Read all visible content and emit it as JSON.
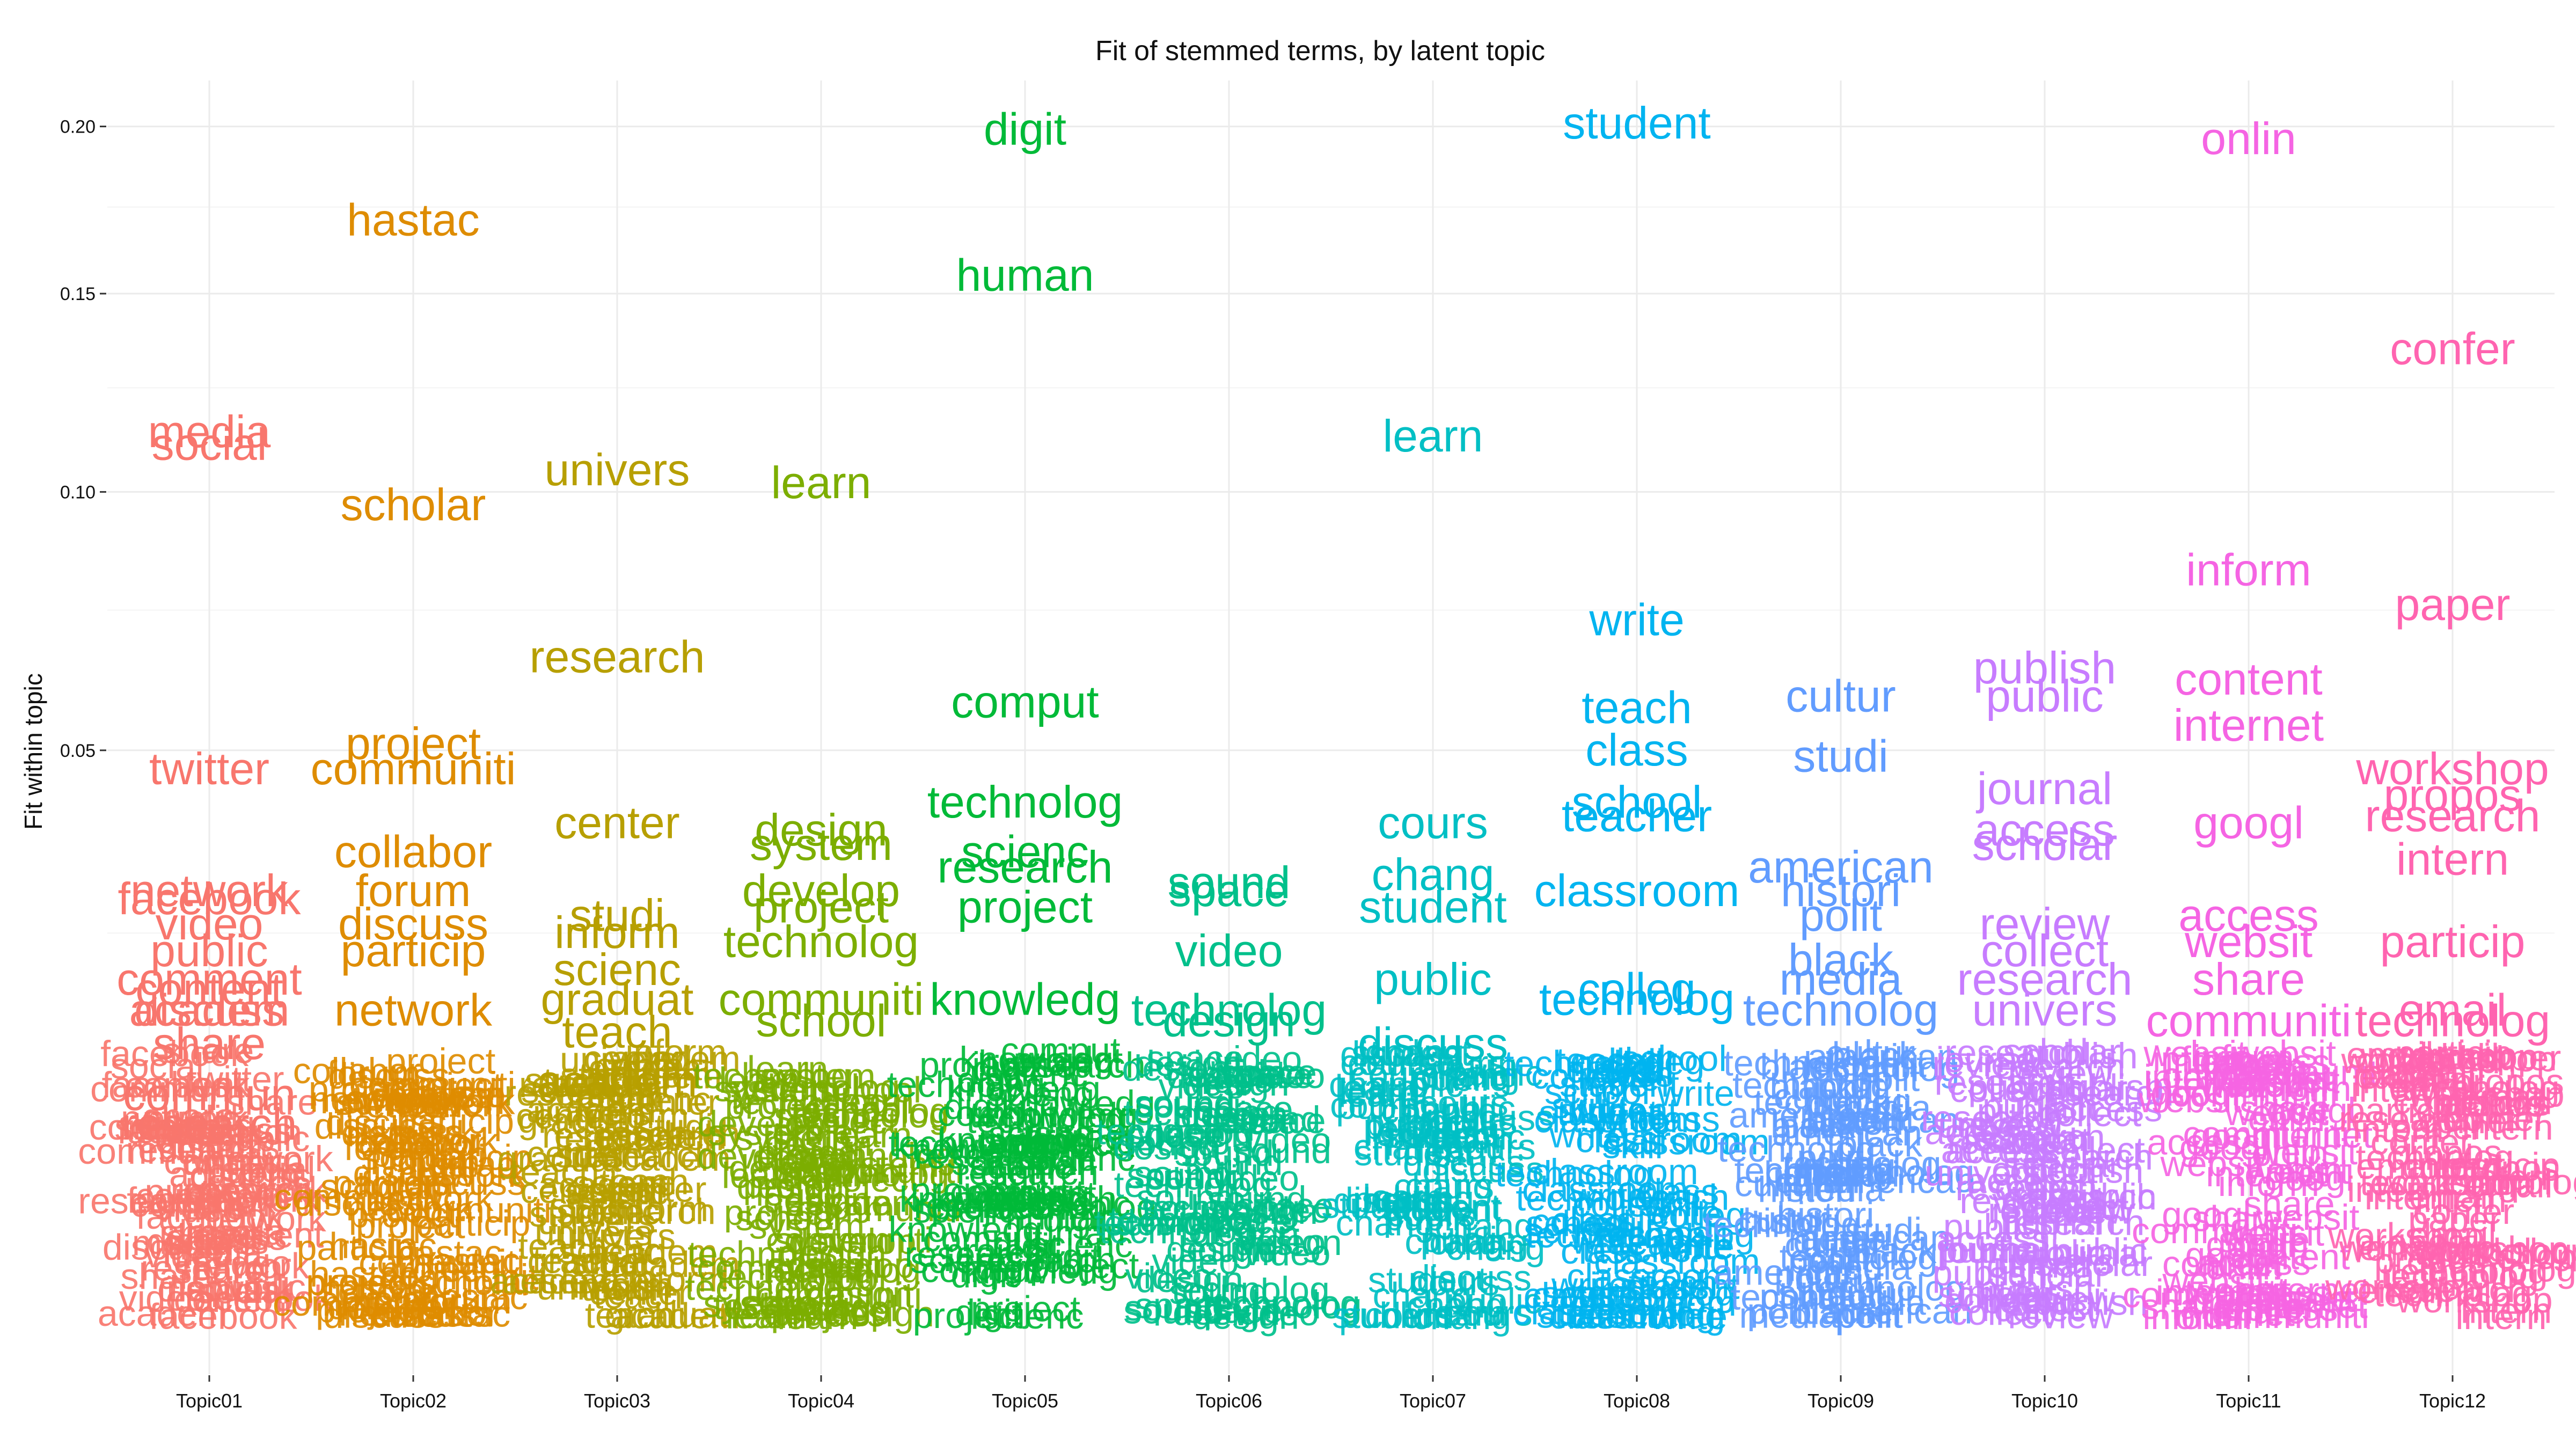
{
  "chart_data": {
    "type": "scatter",
    "title": "Fit of stemmed terms, by latent topic",
    "xlabel": "",
    "ylabel": "Fit within topic",
    "y_scale": "sqrt",
    "ylim": [
      0,
      0.215
    ],
    "y_ticks": [
      0.05,
      0.1,
      0.15,
      0.2
    ],
    "y_tick_labels": [
      "0.05",
      "0.10",
      "0.15",
      "0.20"
    ],
    "grid": true,
    "legend": "none",
    "categories": [
      "Topic01",
      "Topic02",
      "Topic03",
      "Topic04",
      "Topic05",
      "Topic06",
      "Topic07",
      "Topic08",
      "Topic09",
      "Topic10",
      "Topic11",
      "Topic12"
    ],
    "colors": [
      "#F8766D",
      "#DE8C00",
      "#B79F00",
      "#7CAE00",
      "#00BA38",
      "#00C08B",
      "#00BFC4",
      "#00B4F0",
      "#619CFF",
      "#C77CFF",
      "#F564E3",
      "#FF64B0"
    ],
    "series": [
      {
        "name": "Topic01",
        "points": [
          {
            "term": "media",
            "y": 0.114
          },
          {
            "term": "social",
            "y": 0.111
          },
          {
            "term": "twitter",
            "y": 0.047
          },
          {
            "term": "network",
            "y": 0.03
          },
          {
            "term": "facebook",
            "y": 0.029
          },
          {
            "term": "video",
            "y": 0.026
          },
          {
            "term": "public",
            "y": 0.023
          },
          {
            "term": "comment",
            "y": 0.02
          },
          {
            "term": "content",
            "y": 0.019
          },
          {
            "term": "discuss",
            "y": 0.017
          },
          {
            "term": "academ",
            "y": 0.017
          },
          {
            "term": "share",
            "y": 0.014
          },
          {
            "term": "commun",
            "y": 0.01
          },
          {
            "term": "research",
            "y": 0.008
          }
        ]
      },
      {
        "name": "Topic02",
        "points": [
          {
            "term": "hastac",
            "y": 0.171
          },
          {
            "term": "scholar",
            "y": 0.097
          },
          {
            "term": "project",
            "y": 0.051
          },
          {
            "term": "communiti",
            "y": 0.047
          },
          {
            "term": "collabor",
            "y": 0.035
          },
          {
            "term": "forum",
            "y": 0.03
          },
          {
            "term": "discuss",
            "y": 0.026
          },
          {
            "term": "particip",
            "y": 0.023
          },
          {
            "term": "network",
            "y": 0.017
          }
        ]
      },
      {
        "name": "Topic03",
        "points": [
          {
            "term": "univers",
            "y": 0.105
          },
          {
            "term": "research",
            "y": 0.066
          },
          {
            "term": "center",
            "y": 0.039
          },
          {
            "term": "studi",
            "y": 0.027
          },
          {
            "term": "inform",
            "y": 0.025
          },
          {
            "term": "scienc",
            "y": 0.021
          },
          {
            "term": "graduat",
            "y": 0.018
          },
          {
            "term": "teach",
            "y": 0.015
          },
          {
            "term": "academ",
            "y": 0.011
          }
        ]
      },
      {
        "name": "Topic04",
        "points": [
          {
            "term": "learn",
            "y": 0.102
          },
          {
            "term": "design",
            "y": 0.038
          },
          {
            "term": "system",
            "y": 0.036
          },
          {
            "term": "develop",
            "y": 0.03
          },
          {
            "term": "project",
            "y": 0.028
          },
          {
            "term": "technolog",
            "y": 0.024
          },
          {
            "term": "communiti",
            "y": 0.018
          },
          {
            "term": "school",
            "y": 0.016
          }
        ]
      },
      {
        "name": "Topic05",
        "points": [
          {
            "term": "digit",
            "y": 0.199
          },
          {
            "term": "human",
            "y": 0.155
          },
          {
            "term": "comput",
            "y": 0.058
          },
          {
            "term": "technolog",
            "y": 0.042
          },
          {
            "term": "scienc",
            "y": 0.035
          },
          {
            "term": "research",
            "y": 0.033
          },
          {
            "term": "project",
            "y": 0.028
          },
          {
            "term": "knowledg",
            "y": 0.018
          }
        ]
      },
      {
        "name": "Topic06",
        "points": [
          {
            "term": "sound",
            "y": 0.031
          },
          {
            "term": "space",
            "y": 0.03
          },
          {
            "term": "video",
            "y": 0.023
          },
          {
            "term": "technolog",
            "y": 0.017
          },
          {
            "term": "design",
            "y": 0.016
          }
        ]
      },
      {
        "name": "Topic07",
        "points": [
          {
            "term": "learn",
            "y": 0.113
          },
          {
            "term": "cours",
            "y": 0.039
          },
          {
            "term": "chang",
            "y": 0.032
          },
          {
            "term": "student",
            "y": 0.028
          },
          {
            "term": "public",
            "y": 0.02
          },
          {
            "term": "discuss",
            "y": 0.014
          }
        ]
      },
      {
        "name": "Topic08",
        "points": [
          {
            "term": "student",
            "y": 0.201
          },
          {
            "term": "write",
            "y": 0.073
          },
          {
            "term": "teach",
            "y": 0.057
          },
          {
            "term": "class",
            "y": 0.05
          },
          {
            "term": "school",
            "y": 0.042
          },
          {
            "term": "teacher",
            "y": 0.04
          },
          {
            "term": "classroom",
            "y": 0.03
          },
          {
            "term": "colleg",
            "y": 0.019
          },
          {
            "term": "technolog",
            "y": 0.018
          },
          {
            "term": "skill",
            "y": 0.012
          }
        ]
      },
      {
        "name": "Topic09",
        "points": [
          {
            "term": "cultur",
            "y": 0.059
          },
          {
            "term": "studi",
            "y": 0.049
          },
          {
            "term": "american",
            "y": 0.033
          },
          {
            "term": "histori",
            "y": 0.03
          },
          {
            "term": "polit",
            "y": 0.027
          },
          {
            "term": "black",
            "y": 0.022
          },
          {
            "term": "media",
            "y": 0.02
          },
          {
            "term": "technolog",
            "y": 0.017
          }
        ]
      },
      {
        "name": "Topic10",
        "points": [
          {
            "term": "publish",
            "y": 0.064
          },
          {
            "term": "public",
            "y": 0.059
          },
          {
            "term": "journal",
            "y": 0.044
          },
          {
            "term": "access",
            "y": 0.038
          },
          {
            "term": "scholar",
            "y": 0.036
          },
          {
            "term": "review",
            "y": 0.026
          },
          {
            "term": "collect",
            "y": 0.023
          },
          {
            "term": "research",
            "y": 0.02
          },
          {
            "term": "univers",
            "y": 0.017
          }
        ]
      },
      {
        "name": "Topic11",
        "points": [
          {
            "term": "onlin",
            "y": 0.196
          },
          {
            "term": "inform",
            "y": 0.083
          },
          {
            "term": "content",
            "y": 0.062
          },
          {
            "term": "internet",
            "y": 0.054
          },
          {
            "term": "googl",
            "y": 0.039
          },
          {
            "term": "access",
            "y": 0.027
          },
          {
            "term": "websit",
            "y": 0.024
          },
          {
            "term": "share",
            "y": 0.02
          },
          {
            "term": "communiti",
            "y": 0.016
          }
        ]
      },
      {
        "name": "Topic12",
        "points": [
          {
            "term": "confer",
            "y": 0.135
          },
          {
            "term": "paper",
            "y": 0.076
          },
          {
            "term": "workshop",
            "y": 0.047
          },
          {
            "term": "propos",
            "y": 0.043
          },
          {
            "term": "research",
            "y": 0.04
          },
          {
            "term": "intern",
            "y": 0.034
          },
          {
            "term": "particip",
            "y": 0.024
          },
          {
            "term": "email",
            "y": 0.017
          },
          {
            "term": "technolog",
            "y": 0.016
          }
        ]
      }
    ]
  }
}
